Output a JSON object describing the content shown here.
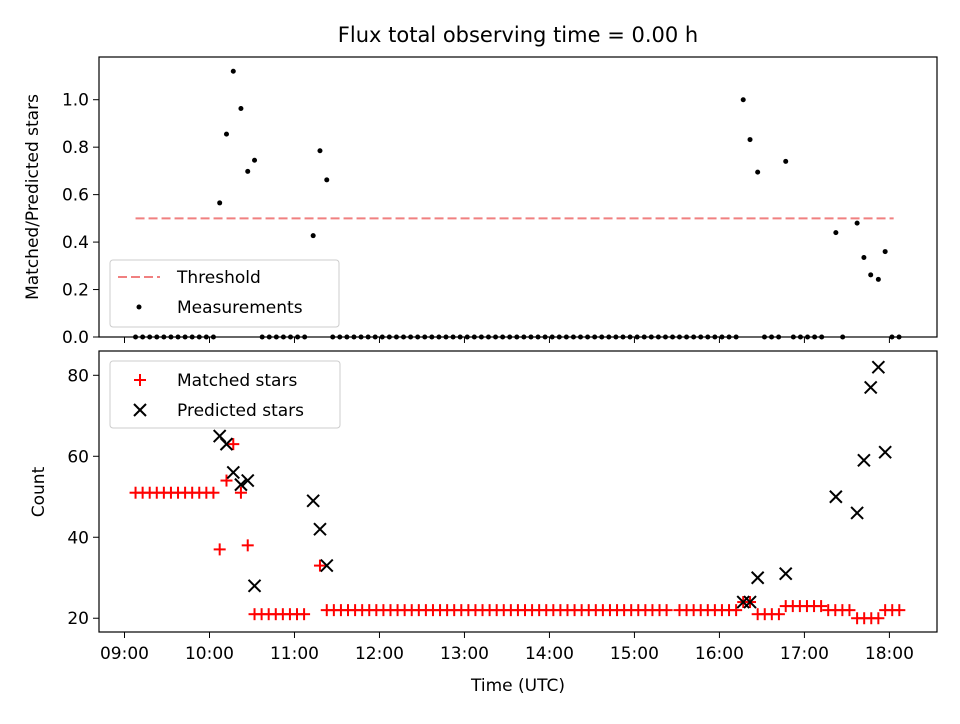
{
  "title": "Flux total observing time = 0.00 h",
  "chart_data": [
    {
      "type": "scatter",
      "panel": "top",
      "ylabel": "Matched/Predicted stars",
      "ylim": [
        0,
        1.18
      ],
      "yticks": [
        "0.0",
        "0.2",
        "0.4",
        "0.6",
        "0.8",
        "1.0"
      ],
      "ytick_values": [
        0,
        0.2,
        0.4,
        0.6,
        0.8,
        1.0
      ],
      "xlim": [
        8.7,
        18.56
      ],
      "threshold": {
        "name": "Threshold",
        "value": 0.5,
        "x": [
          9.13,
          18.05
        ],
        "color": "#f08080"
      },
      "legend": {
        "placement": "lower-left",
        "entries": [
          "Threshold",
          "Measurements"
        ]
      },
      "series": [
        {
          "name": "Measurements",
          "color": "#000000",
          "points": [
            [
              10.12,
              0.565
            ],
            [
              10.2,
              0.855
            ],
            [
              10.28,
              1.12
            ],
            [
              10.37,
              0.963
            ],
            [
              10.45,
              0.698
            ],
            [
              10.53,
              0.745
            ],
            [
              11.22,
              0.427
            ],
            [
              11.3,
              0.785
            ],
            [
              11.38,
              0.662
            ],
            [
              16.28,
              1.0
            ],
            [
              16.36,
              0.832
            ],
            [
              16.45,
              0.695
            ],
            [
              16.78,
              0.74
            ],
            [
              17.37,
              0.44
            ],
            [
              17.62,
              0.48
            ],
            [
              17.7,
              0.335
            ],
            [
              17.78,
              0.262
            ],
            [
              17.87,
              0.243
            ],
            [
              17.95,
              0.36
            ]
          ],
          "zero_runs": [
            [
              9.13,
              10.05,
              0.0833
            ],
            [
              10.62,
              11.13,
              0.0833
            ],
            [
              11.45,
              15.45,
              0.0833
            ],
            [
              15.53,
              16.2,
              0.0833
            ],
            [
              16.53,
              16.7,
              0.0833
            ],
            [
              16.87,
              17.28,
              0.0833
            ],
            [
              17.45,
              17.53,
              0.0833
            ],
            [
              18.03,
              18.12,
              0.0833
            ]
          ]
        }
      ]
    },
    {
      "type": "scatter",
      "panel": "bottom",
      "xlabel": "Time (UTC)",
      "ylabel": "Count",
      "ylim": [
        16.6,
        86
      ],
      "yticks": [
        "20",
        "40",
        "60",
        "80"
      ],
      "ytick_values": [
        20,
        40,
        60,
        80
      ],
      "xlim": [
        8.7,
        18.56
      ],
      "xticks": [
        "09:00",
        "10:00",
        "11:00",
        "12:00",
        "13:00",
        "14:00",
        "15:00",
        "16:00",
        "17:00",
        "18:00"
      ],
      "xtick_values": [
        9,
        10,
        11,
        12,
        13,
        14,
        15,
        16,
        17,
        18
      ],
      "legend": {
        "placement": "upper-left",
        "entries": [
          "Matched stars",
          "Predicted stars"
        ]
      },
      "series": [
        {
          "name": "Matched stars",
          "marker": "plus",
          "color": "#ff0000",
          "points": [
            [
              10.12,
              37
            ],
            [
              10.2,
              54
            ],
            [
              10.28,
              63
            ],
            [
              10.37,
              51
            ],
            [
              10.45,
              38
            ],
            [
              11.3,
              33
            ],
            [
              16.28,
              24
            ],
            [
              16.36,
              24
            ]
          ],
          "runs": [
            [
              9.13,
              10.05,
              0.0833,
              51
            ],
            [
              10.53,
              11.13,
              0.0833,
              21
            ],
            [
              11.38,
              15.45,
              0.0833,
              22
            ],
            [
              15.53,
              16.2,
              0.0833,
              22
            ],
            [
              16.45,
              16.7,
              0.0833,
              21
            ],
            [
              16.78,
              17.2,
              0.0833,
              23
            ],
            [
              17.28,
              17.53,
              0.0833,
              22
            ],
            [
              17.62,
              17.87,
              0.0833,
              20
            ],
            [
              17.95,
              18.12,
              0.0833,
              22
            ]
          ]
        },
        {
          "name": "Predicted stars",
          "marker": "x",
          "color": "#000000",
          "points": [
            [
              10.12,
              65
            ],
            [
              10.2,
              63
            ],
            [
              10.28,
              56
            ],
            [
              10.37,
              53
            ],
            [
              10.45,
              54
            ],
            [
              10.53,
              28
            ],
            [
              11.22,
              49
            ],
            [
              11.3,
              42
            ],
            [
              11.38,
              33
            ],
            [
              16.28,
              24
            ],
            [
              16.36,
              24
            ],
            [
              16.45,
              30
            ],
            [
              16.78,
              31
            ],
            [
              17.37,
              50
            ],
            [
              17.62,
              46
            ],
            [
              17.7,
              59
            ],
            [
              17.78,
              77
            ],
            [
              17.87,
              82
            ],
            [
              17.95,
              61
            ]
          ]
        }
      ]
    }
  ]
}
